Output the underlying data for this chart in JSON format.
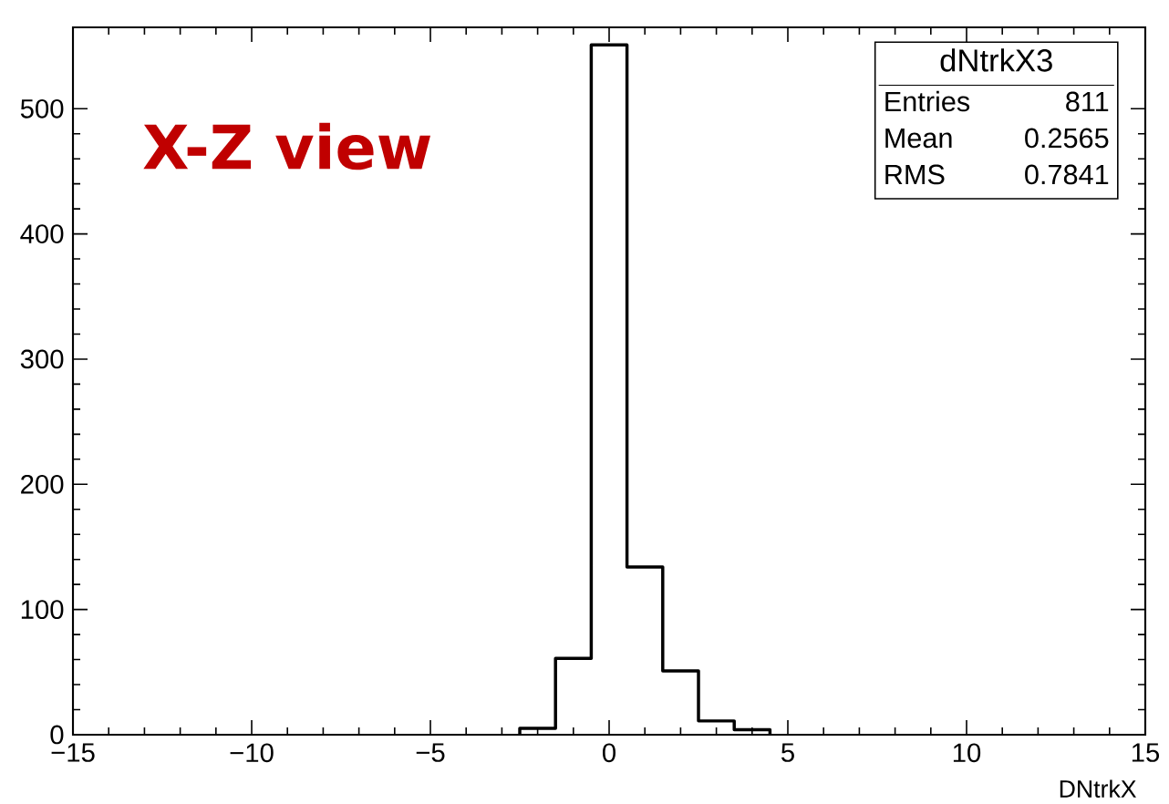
{
  "chart_data": {
    "type": "histogram",
    "title": "X-Z view",
    "xlabel": "DNtrkX",
    "bins": [
      -2.5,
      -1.5,
      -0.5,
      0.5,
      1.5,
      2.5,
      3.5,
      4.5
    ],
    "values": [
      5,
      61,
      551,
      134,
      51,
      11,
      4
    ],
    "color": "#000000",
    "xlim": [
      -15,
      15
    ],
    "ylim": [
      0,
      565
    ],
    "xticks": [
      {
        "value": -15,
        "label": "−15"
      },
      {
        "value": -10,
        "label": "−10"
      },
      {
        "value": -5,
        "label": "−5"
      },
      0,
      5,
      10,
      15
    ],
    "yticks": [
      0,
      100,
      200,
      300,
      400,
      500
    ],
    "legend_title": "dNtrkX3",
    "annotations": [
      "Entries",
      "811",
      "Mean",
      "0.2565",
      "RMS",
      "0.7841"
    ],
    "grid": false
  }
}
